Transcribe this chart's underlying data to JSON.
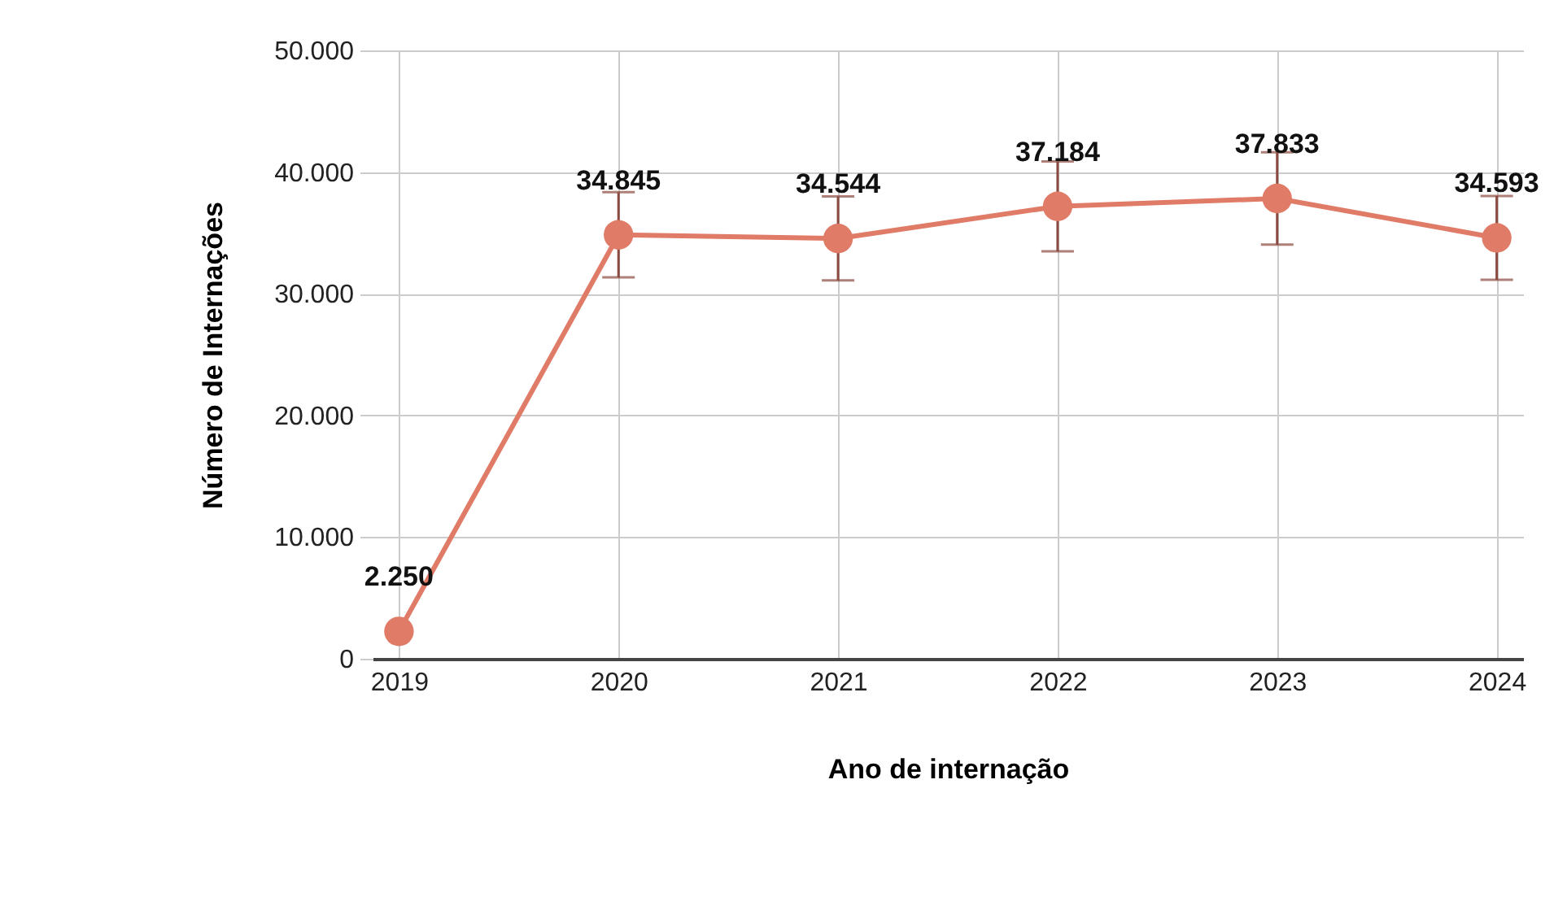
{
  "chart_data": {
    "type": "line",
    "xlabel": "Ano de internação",
    "ylabel": "Número de Internações",
    "categories": [
      "2019",
      "2020",
      "2021",
      "2022",
      "2023",
      "2024"
    ],
    "series": [
      {
        "color": "#e07b67",
        "values": [
          2250,
          34845,
          34544,
          37184,
          37833,
          34593
        ],
        "errors": [
          null,
          3500,
          3450,
          3700,
          3800,
          3450
        ],
        "value_labels": [
          "2.250",
          "34.845",
          "34.544",
          "37.184",
          "37.833",
          "34.593"
        ]
      }
    ],
    "ylim": [
      0,
      50000
    ],
    "yticks": [
      {
        "value": 0,
        "label": "0"
      },
      {
        "value": 10000,
        "label": "10.000"
      },
      {
        "value": 20000,
        "label": "20.000"
      },
      {
        "value": 30000,
        "label": "30.000"
      },
      {
        "value": 40000,
        "label": "40.000"
      },
      {
        "value": 50000,
        "label": "50.000"
      }
    ],
    "grid": true,
    "marker": "circle",
    "line_style": "solid"
  }
}
